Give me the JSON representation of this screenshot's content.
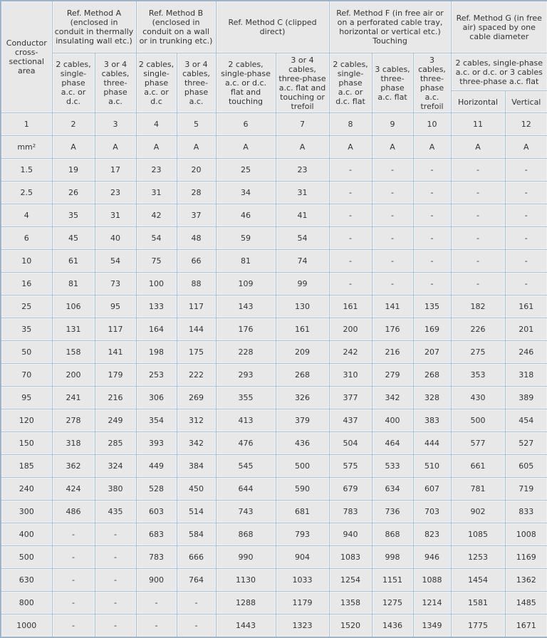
{
  "table": {
    "corner_label": "Conductor cross-sectional area",
    "groups": [
      {
        "title": "Ref. Method A (enclosed in conduit in thermally insulating wall etc.)",
        "cols": [
          "2 cables, single-phase a.c. or d.c.",
          "3 or 4 cables, three-phase a.c."
        ]
      },
      {
        "title": "Ref. Method B (enclosed in conduit on a wall or in trunking etc.)",
        "cols": [
          "2 cables, single-phase a.c. or d.c",
          "3 or 4 cables, three-phase a.c."
        ]
      },
      {
        "title": "Ref. Method C (clipped direct)",
        "cols": [
          "2 cables, single-phase a.c. or d.c. flat and touching",
          "3 or 4 cables, three-phase a.c. flat and touching or trefoil"
        ]
      },
      {
        "title": "Ref. Method F (in free air or on a perforated cable tray, horizontal or vertical etc.) Touching",
        "cols": [
          "2 cables, single-phase a.c. or d.c. flat",
          "3 cables, three-phase a.c. flat",
          "3 cables, three-phase a.c. trefoil"
        ]
      },
      {
        "title": "Ref. Method G (in free air) spaced by one cable diameter",
        "subtitle": "2 cables, single-phase a.c. or d.c. or 3 cables three-phase a.c. flat",
        "cols": [
          "Horizontal",
          "Vertical"
        ]
      }
    ],
    "column_numbers": [
      "1",
      "2",
      "3",
      "4",
      "5",
      "6",
      "7",
      "8",
      "9",
      "10",
      "11",
      "12"
    ],
    "units": [
      "mm²",
      "A",
      "A",
      "A",
      "A",
      "A",
      "A",
      "A",
      "A",
      "A",
      "A",
      "A"
    ],
    "rows": [
      [
        "1.5",
        "19",
        "17",
        "23",
        "20",
        "25",
        "23",
        "-",
        "-",
        "-",
        "-",
        "-"
      ],
      [
        "2.5",
        "26",
        "23",
        "31",
        "28",
        "34",
        "31",
        "-",
        "-",
        "-",
        "-",
        "-"
      ],
      [
        "4",
        "35",
        "31",
        "42",
        "37",
        "46",
        "41",
        "-",
        "-",
        "-",
        "-",
        "-"
      ],
      [
        "6",
        "45",
        "40",
        "54",
        "48",
        "59",
        "54",
        "-",
        "-",
        "-",
        "-",
        "-"
      ],
      [
        "10",
        "61",
        "54",
        "75",
        "66",
        "81",
        "74",
        "-",
        "-",
        "-",
        "-",
        "-"
      ],
      [
        "16",
        "81",
        "73",
        "100",
        "88",
        "109",
        "99",
        "-",
        "-",
        "-",
        "-",
        "-"
      ],
      [
        "25",
        "106",
        "95",
        "133",
        "117",
        "143",
        "130",
        "161",
        "141",
        "135",
        "182",
        "161"
      ],
      [
        "35",
        "131",
        "117",
        "164",
        "144",
        "176",
        "161",
        "200",
        "176",
        "169",
        "226",
        "201"
      ],
      [
        "50",
        "158",
        "141",
        "198",
        "175",
        "228",
        "209",
        "242",
        "216",
        "207",
        "275",
        "246"
      ],
      [
        "70",
        "200",
        "179",
        "253",
        "222",
        "293",
        "268",
        "310",
        "279",
        "268",
        "353",
        "318"
      ],
      [
        "95",
        "241",
        "216",
        "306",
        "269",
        "355",
        "326",
        "377",
        "342",
        "328",
        "430",
        "389"
      ],
      [
        "120",
        "278",
        "249",
        "354",
        "312",
        "413",
        "379",
        "437",
        "400",
        "383",
        "500",
        "454"
      ],
      [
        "150",
        "318",
        "285",
        "393",
        "342",
        "476",
        "436",
        "504",
        "464",
        "444",
        "577",
        "527"
      ],
      [
        "185",
        "362",
        "324",
        "449",
        "384",
        "545",
        "500",
        "575",
        "533",
        "510",
        "661",
        "605"
      ],
      [
        "240",
        "424",
        "380",
        "528",
        "450",
        "644",
        "590",
        "679",
        "634",
        "607",
        "781",
        "719"
      ],
      [
        "300",
        "486",
        "435",
        "603",
        "514",
        "743",
        "681",
        "783",
        "736",
        "703",
        "902",
        "833"
      ],
      [
        "400",
        "-",
        "-",
        "683",
        "584",
        "868",
        "793",
        "940",
        "868",
        "823",
        "1085",
        "1008"
      ],
      [
        "500",
        "-",
        "-",
        "783",
        "666",
        "990",
        "904",
        "1083",
        "998",
        "946",
        "1253",
        "1169"
      ],
      [
        "630",
        "-",
        "-",
        "900",
        "764",
        "1130",
        "1033",
        "1254",
        "1151",
        "1088",
        "1454",
        "1362"
      ],
      [
        "800",
        "-",
        "-",
        "-",
        "-",
        "1288",
        "1179",
        "1358",
        "1275",
        "1214",
        "1581",
        "1485"
      ],
      [
        "1000",
        "-",
        "-",
        "-",
        "-",
        "1443",
        "1323",
        "1520",
        "1436",
        "1349",
        "1775",
        "1671"
      ]
    ],
    "colors": {
      "cell_bg": "#e8e8e8",
      "grid_border": "#a2c0d8",
      "outer_border": "#9db4c4",
      "text": "#333333"
    }
  }
}
